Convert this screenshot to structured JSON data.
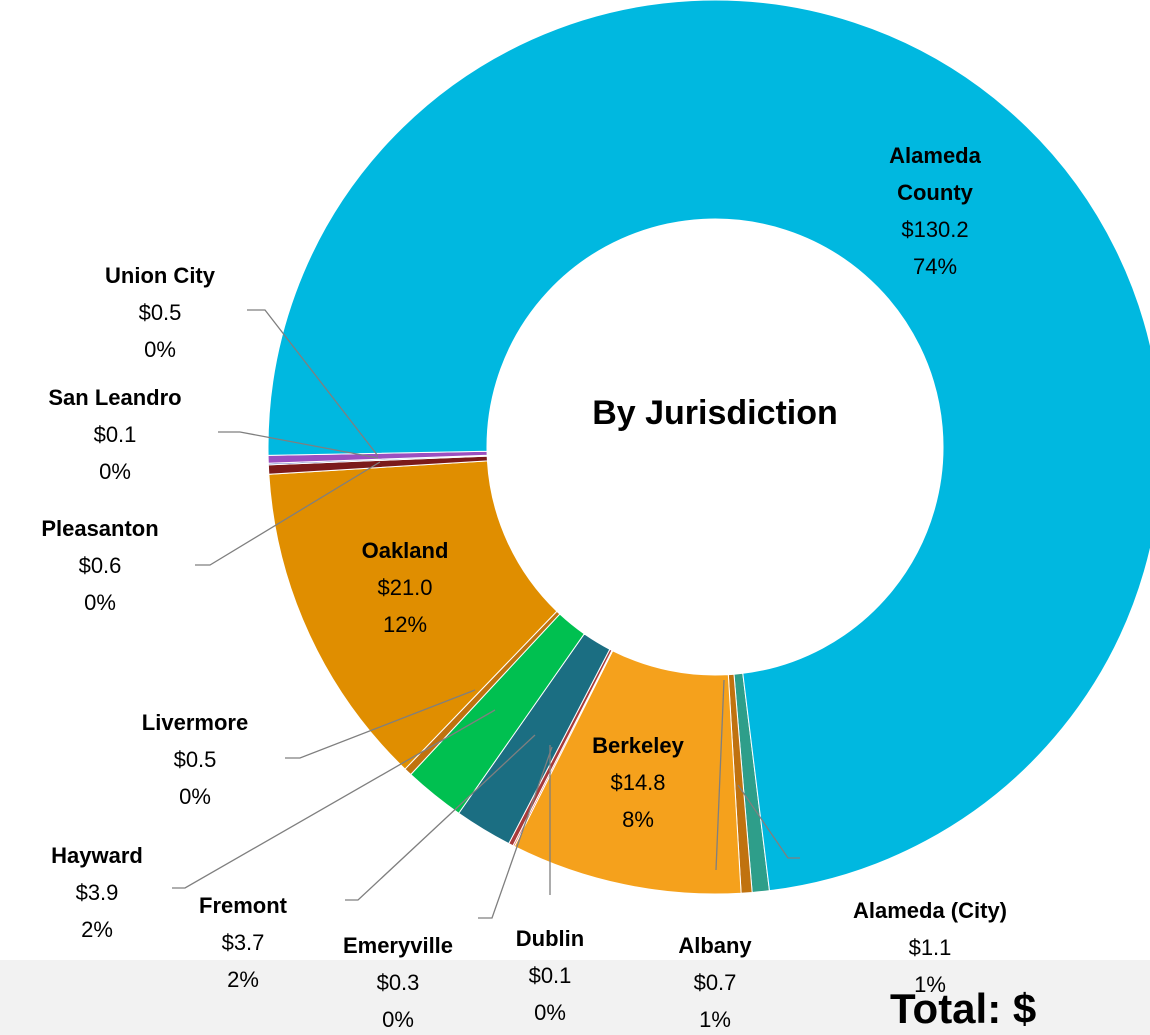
{
  "chart_data": {
    "type": "donut",
    "title": "By Jurisdiction",
    "footer": "Total: $",
    "categories": [
      "Alameda (City)",
      "Albany",
      "Berkeley",
      "Dublin",
      "Emeryville",
      "Fremont",
      "Hayward",
      "Livermore",
      "Oakland",
      "Pleasanton",
      "San Leandro",
      "Union City",
      "Alameda County"
    ],
    "values": [
      1.1,
      0.7,
      14.8,
      0.1,
      0.3,
      3.7,
      3.9,
      0.5,
      21.0,
      0.6,
      0.1,
      0.5,
      130.2
    ],
    "value_labels": [
      "$1.1",
      "$0.7",
      "$14.8",
      "$0.1",
      "$0.3",
      "$3.7",
      "$3.9",
      "$0.5",
      "$21.0",
      "$0.6",
      "$0.1",
      "$0.5",
      "$130.2"
    ],
    "percents": [
      1,
      1,
      8,
      0,
      0,
      2,
      2,
      0,
      12,
      0,
      0,
      0,
      74
    ],
    "percent_labels": [
      "1%",
      "1%",
      "8%",
      "0%",
      "0%",
      "2%",
      "2%",
      "0%",
      "12%",
      "0%",
      "0%",
      "0%",
      "74%"
    ],
    "colors": [
      "#2e9e8a",
      "#c0720f",
      "#f5a11c",
      "#e0493a",
      "#a83a3a",
      "#1b6e82",
      "#00c050",
      "#c0720f",
      "#e08e00",
      "#7b1a1a",
      "#5a6fc0",
      "#9b4fc0",
      "#00b8e0"
    ]
  }
}
